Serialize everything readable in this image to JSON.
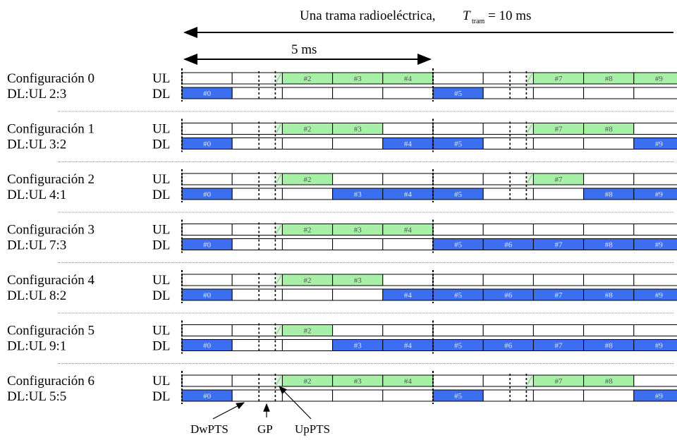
{
  "header": {
    "frame_label": "Una trama radioeléctrica,",
    "t_symbol": "T",
    "t_sub": "tram",
    "t_value": "= 10 ms",
    "half_label": "5 ms"
  },
  "ul_label": "UL",
  "dl_label": "DL",
  "colors": {
    "dl": "#3b6ff0",
    "ul": "#a8f0a8",
    "special": "#d8f5d8"
  },
  "configs": [
    {
      "name": "Configuración 0",
      "ratio": "DL:UL 2:3",
      "ul": [
        2,
        3,
        4,
        7,
        8,
        9
      ],
      "dl": [
        0,
        5
      ],
      "sec_special": true
    },
    {
      "name": "Configuración 1",
      "ratio": "DL:UL 3:2",
      "ul": [
        2,
        3,
        7,
        8
      ],
      "dl": [
        0,
        4,
        5,
        9
      ],
      "sec_special": true
    },
    {
      "name": "Configuración 2",
      "ratio": "DL:UL 4:1",
      "ul": [
        2,
        7
      ],
      "dl": [
        0,
        3,
        4,
        5,
        8,
        9
      ],
      "sec_special": true
    },
    {
      "name": "Configuración 3",
      "ratio": "DL:UL 7:3",
      "ul": [
        2,
        3,
        4
      ],
      "dl": [
        0,
        5,
        6,
        7,
        8,
        9
      ],
      "sec_special": false
    },
    {
      "name": "Configuración 4",
      "ratio": "DL:UL 8:2",
      "ul": [
        2,
        3
      ],
      "dl": [
        0,
        4,
        5,
        6,
        7,
        8,
        9
      ],
      "sec_special": false
    },
    {
      "name": "Configuración 5",
      "ratio": "DL:UL 9:1",
      "ul": [
        2
      ],
      "dl": [
        0,
        3,
        4,
        5,
        6,
        7,
        8,
        9
      ],
      "sec_special": false
    },
    {
      "name": "Configuración 6",
      "ratio": "DL:UL 5:5",
      "ul": [
        2,
        3,
        4,
        7,
        8
      ],
      "dl": [
        0,
        5,
        9
      ],
      "sec_special": true
    }
  ],
  "annotations": {
    "dwpts": "DwPTS",
    "gp": "GP",
    "uppts": "UpPTS"
  }
}
